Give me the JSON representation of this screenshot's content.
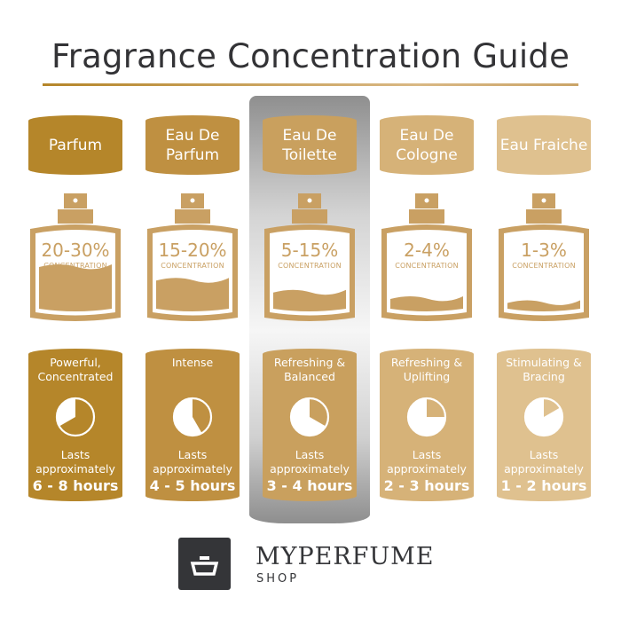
{
  "title": "Fragrance Concentration Guide",
  "concentration_label": "CONCENTRATION",
  "lasts_label": "Lasts approximately",
  "bottle_color": "#c9a063",
  "highlight_column": "Eau De Toilette",
  "columns": [
    {
      "name": "Parfum",
      "concentration": "20-30%",
      "liquid_level": 0.5,
      "description": "Powerful, Concentrated",
      "duration": "6 - 8 hours",
      "clock_hours": 8,
      "color": "#b5862a"
    },
    {
      "name": "Eau De Parfum",
      "concentration": "15-20%",
      "liquid_level": 0.33,
      "description": "Intense",
      "duration": "4 - 5 hours",
      "clock_hours": 5,
      "color": "#bf9041"
    },
    {
      "name": "Eau De Toilette",
      "concentration": "5-15%",
      "liquid_level": 0.18,
      "description": "Refreshing & Balanced",
      "duration": "3 - 4 hours",
      "clock_hours": 4,
      "color": "#c9a05e"
    },
    {
      "name": "Eau De Cologne",
      "concentration": "2-4%",
      "liquid_level": 0.1,
      "description": "Refreshing & Uplifting",
      "duration": "2 - 3 hours",
      "clock_hours": 3,
      "color": "#d6b278"
    },
    {
      "name": "Eau Fraiche",
      "concentration": "1-3%",
      "liquid_level": 0.05,
      "description": "Stimulating & Bracing",
      "duration": "1 - 2 hours",
      "clock_hours": 2,
      "color": "#dfc18f"
    }
  ],
  "logo": {
    "brand": "MYPERFUME",
    "sub": "SHOP"
  }
}
